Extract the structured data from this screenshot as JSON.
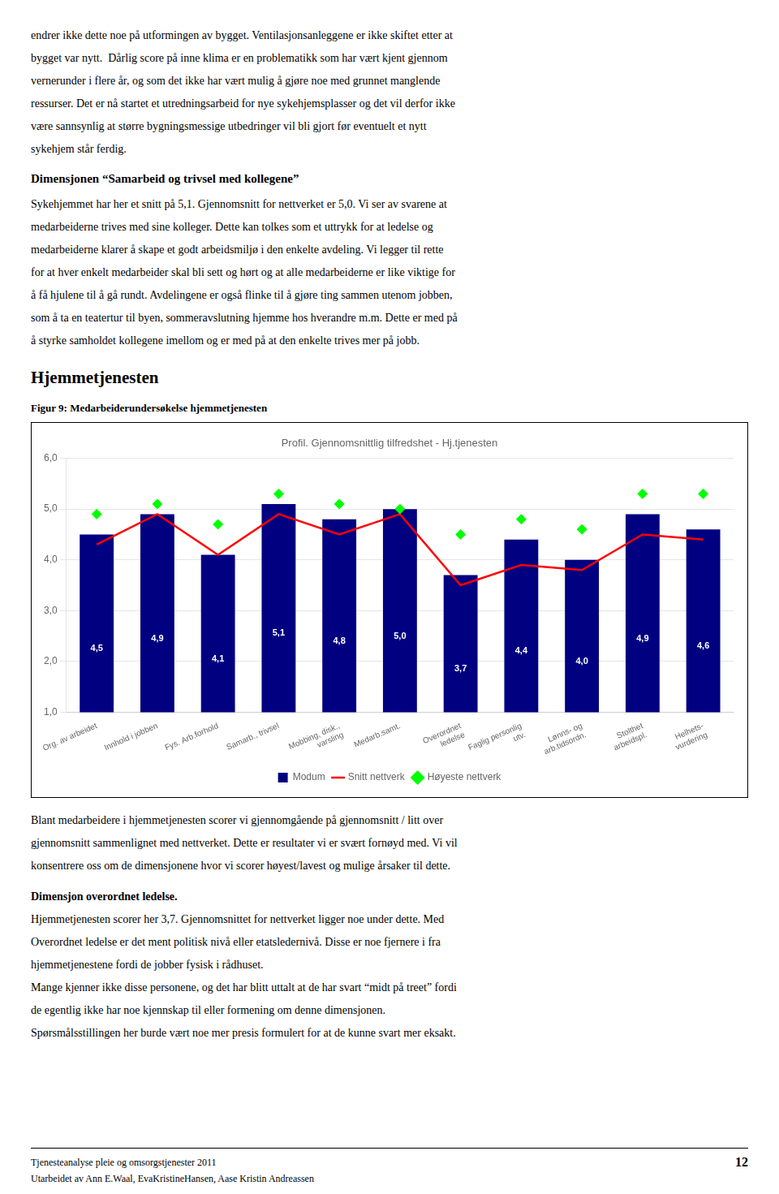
{
  "page_title_top_text": [
    "endrer ikke dette noe på utformingen av bygget. Ventilasjonsanleggene er ikke skiftet etter at",
    "bygget var nytt.  Dårlig score på inne klima er en problematikk som har vært kjent gjennom",
    "vernerunder i flere år, og som det ikke har vært mulig å gjøre noe med grunnet manglende",
    "ressurser. Det er nå startet et utredningsarbeid for nye sykehjemsplasser og det vil derfor ikke",
    "være sannsynlig at større bygningsmessige utbedringer vil bli gjort før eventuelt et nytt",
    "sykehjem står ferdig."
  ],
  "section_heading1": "Dimensjonen “Samarbeid og trivsel med kollegene”",
  "para1_lines": [
    "Sykehjemmet har her et snitt på 5,1. Gjennomsnitt for nettverket er 5,0. Vi ser av svarene at",
    "medarbeiderne trives med sine kolleger. Dette kan tolkes som et uttrykk for at ledelse og",
    "medarbeiderne klarer å skape et godt arbeidsmiljø i den enkelte avdeling. Vi legger til rette",
    "for at hver enkelt medarbeider skal bli sett og hørt og at alle medarbeiderne er like viktige for",
    "å få hjulene til å gå rundt. Avdelingene er også flinke til å gjøre ting sammen utenom jobben,",
    "som å ta en teatertur til byen, sommeravslutning hjemme hos hverandre m.m. Dette er med på",
    "å styrke samholdet kollegene imellom og er med på at den enkelte trives mer på jobb."
  ],
  "section_heading2": "Hjemmetjenesten",
  "figure_title": "Figur 9: Medarbeiderundersøkelse hjemmetjenesten",
  "para2_lines": [
    "Blant medarbeidere i hjemmetjenesten scorer vi gjennomgående på gjennomsnitt / litt over",
    "gjennomsnitt sammenlignet med nettverket. Dette er resultater vi er svært fornøyd med. Vi vil",
    "konsentrere oss om de dimensjonene hvor vi scorer høyest/lavest og mulige årsaker til dette."
  ],
  "section_heading3": "Dimensjon overordnet ledelse.",
  "para3_lines": [
    "Hjemmetjenesten scorer her 3,7. Gjennomsnittet for nettverket ligger noe under dette. Med",
    "Overordnet ledelse er det ment politisk nivå eller etatsledernivå. Disse er noe fjernere i fra",
    "hjemmetjenestene fordi de jobber fysisk i rådhuset.",
    "Mange kjenner ikke disse personene, og det har blitt uttalt at de har svart “midt på treet” fordi",
    "de egentlig ikke har noe kjennskap til eller formening om denne dimensjonen.",
    "Spørsmålsstillingen her burde vært noe mer presis formulert for at de kunne svart mer eksakt."
  ],
  "footer_left1": "Tjenesteanalyse pleie og omsorgstjenester 2011",
  "footer_left2": "Utarbeidet av Ann E.Waal, EvaKristineHansen, Aase Kristin Andreassen",
  "footer_right": "12",
  "chart_data": {
    "type": "bar",
    "title": "Profil. Gjennomsnittlig tilfredshet - Hj.tjenesten",
    "categories": [
      "Org. av arbeidet",
      "Innhold i jobben",
      "Fys. Arb.forhold",
      "Samarb., trivsel",
      "Mobbing, disk.,\nvarsling",
      "Medarb.samt.",
      "Overordnet\nledelse",
      "Faglig personlig\nutv.",
      "Lønns- og\narb.tidsordn.",
      "Stolthet\narbeidspl.",
      "Helhets-\nvurdering"
    ],
    "series": [
      {
        "name": "Modum",
        "type": "bar",
        "color": "#000080",
        "values": [
          4.5,
          4.9,
          4.1,
          5.1,
          4.8,
          5.0,
          3.7,
          4.4,
          4.0,
          4.9,
          4.6
        ],
        "value_labels": [
          "4,5",
          "4,9",
          "4,1",
          "5,1",
          "4,8",
          "5,0",
          "3,7",
          "4,4",
          "4,0",
          "4,9",
          "4,6"
        ],
        "data_labels": true
      },
      {
        "name": "Snitt nettverk",
        "type": "line",
        "color": "#FF0000",
        "values": [
          4.3,
          4.9,
          4.1,
          4.9,
          4.5,
          4.9,
          3.5,
          3.9,
          3.8,
          4.5,
          4.4
        ]
      },
      {
        "name": "Høyeste nettverk",
        "type": "scatter",
        "marker": "diamond",
        "color": "#00FF00",
        "values": [
          4.9,
          5.1,
          4.7,
          5.3,
          5.1,
          5.0,
          4.5,
          4.8,
          4.6,
          5.3,
          5.3
        ]
      }
    ],
    "ylim": [
      1.0,
      6.0
    ],
    "yticks": [
      {
        "value": 1.0,
        "label": "1,0"
      },
      {
        "value": 2.0,
        "label": "2,0"
      },
      {
        "value": 3.0,
        "label": "3,0"
      },
      {
        "value": 4.0,
        "label": "4,0"
      },
      {
        "value": 5.0,
        "label": "5,0"
      },
      {
        "value": 6.0,
        "label": "6,0"
      }
    ],
    "grid": true,
    "legend": "bottom"
  }
}
